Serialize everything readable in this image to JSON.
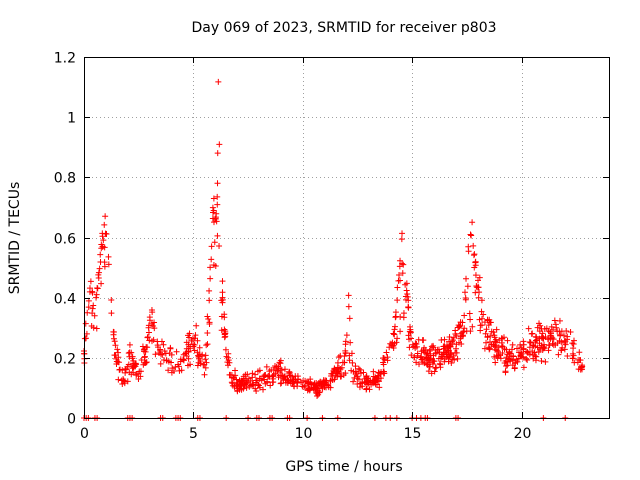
{
  "chart_data": {
    "type": "scatter",
    "title": "Day 069 of 2023, SRMTID for receiver p803",
    "xlabel": "GPS time / hours",
    "ylabel": "SRMTID / TECUs",
    "xlim": [
      0,
      24
    ],
    "ylim": [
      0,
      1.2
    ],
    "xticks": [
      0,
      5,
      10,
      15,
      20
    ],
    "yticks": [
      0,
      0.2,
      0.4,
      0.6,
      0.8,
      1,
      1.2
    ],
    "xtick_labels": [
      "0",
      "5",
      "10",
      "15",
      "20"
    ],
    "ytick_labels": [
      "0",
      "0.2",
      "0.4",
      "0.6",
      "0.8",
      "1",
      "1.2"
    ],
    "grid": true,
    "marker": "plus",
    "series_color": "#ff0000",
    "trend": [
      [
        0.0,
        0.2
      ],
      [
        0.2,
        0.4
      ],
      [
        0.5,
        0.35
      ],
      [
        0.8,
        0.5
      ],
      [
        1.0,
        0.58
      ],
      [
        1.2,
        0.38
      ],
      [
        1.5,
        0.2
      ],
      [
        1.8,
        0.12
      ],
      [
        2.1,
        0.2
      ],
      [
        2.5,
        0.15
      ],
      [
        3.0,
        0.25
      ],
      [
        3.5,
        0.22
      ],
      [
        4.0,
        0.2
      ],
      [
        4.5,
        0.18
      ],
      [
        5.0,
        0.28
      ],
      [
        5.5,
        0.15
      ],
      [
        5.8,
        0.4
      ],
      [
        6.0,
        0.6
      ],
      [
        6.2,
        0.5
      ],
      [
        6.5,
        0.2
      ],
      [
        7.0,
        0.1
      ],
      [
        7.5,
        0.12
      ],
      [
        8.0,
        0.12
      ],
      [
        8.5,
        0.14
      ],
      [
        9.0,
        0.16
      ],
      [
        9.5,
        0.12
      ],
      [
        10.0,
        0.12
      ],
      [
        10.5,
        0.1
      ],
      [
        11.0,
        0.11
      ],
      [
        11.5,
        0.15
      ],
      [
        12.0,
        0.18
      ],
      [
        12.5,
        0.14
      ],
      [
        13.0,
        0.12
      ],
      [
        13.5,
        0.14
      ],
      [
        14.0,
        0.22
      ],
      [
        14.5,
        0.35
      ],
      [
        15.0,
        0.25
      ],
      [
        15.5,
        0.2
      ],
      [
        16.0,
        0.2
      ],
      [
        16.5,
        0.22
      ],
      [
        17.0,
        0.24
      ],
      [
        17.5,
        0.32
      ],
      [
        18.0,
        0.4
      ],
      [
        18.5,
        0.28
      ],
      [
        19.0,
        0.22
      ],
      [
        19.5,
        0.2
      ],
      [
        20.0,
        0.22
      ],
      [
        20.5,
        0.24
      ],
      [
        21.0,
        0.25
      ],
      [
        21.5,
        0.28
      ],
      [
        22.0,
        0.25
      ],
      [
        22.5,
        0.2
      ],
      [
        22.8,
        0.16
      ]
    ],
    "spikes": [
      {
        "center": 0.95,
        "width": 0.35,
        "peak": 0.66
      },
      {
        "center": 5.95,
        "width": 0.3,
        "peak": 0.75
      },
      {
        "center": 6.15,
        "width": 0.1,
        "peak": 1.18
      },
      {
        "center": 14.55,
        "width": 0.4,
        "peak": 0.63
      },
      {
        "center": 17.7,
        "width": 0.4,
        "peak": 0.72
      },
      {
        "center": 3.1,
        "width": 0.3,
        "peak": 0.4
      },
      {
        "center": 12.1,
        "width": 0.2,
        "peak": 0.42
      }
    ],
    "zero_points": [
      0.0,
      0.1,
      0.2,
      0.5,
      0.6,
      2.0,
      2.1,
      2.2,
      3.5,
      3.6,
      4.2,
      4.3,
      4.4,
      5.2,
      5.3,
      6.5,
      7.5,
      7.9,
      8.0,
      8.5,
      8.6,
      9.3,
      9.4,
      10.2,
      10.9,
      11.6,
      13.3,
      13.8,
      14.0,
      14.3,
      15.0,
      15.2,
      15.4,
      15.6,
      15.7,
      17.0,
      17.1,
      21.0,
      22.0
    ],
    "num_points": 1100
  }
}
